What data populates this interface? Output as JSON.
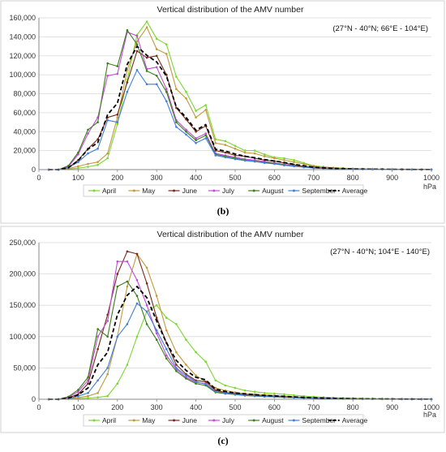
{
  "chart_data": [
    {
      "type": "line",
      "panel_label": "(b)",
      "title": "Vertical distribution of the AMV number",
      "region_label": "(27°N - 40°N; 66°E - 104°E)",
      "x_unit": "hPa",
      "xlim": [
        0,
        1000
      ],
      "ylim": [
        0,
        160000
      ],
      "x_ticks": [
        0,
        100,
        200,
        300,
        400,
        500,
        600,
        700,
        800,
        900,
        1000
      ],
      "y_ticks": [
        0,
        20000,
        40000,
        60000,
        80000,
        100000,
        120000,
        140000,
        160000
      ],
      "y_tick_labels": [
        "0",
        "20,000",
        "40,000",
        "60,000",
        "80,000",
        "100,000",
        "120,000",
        "140,000",
        "160,000"
      ],
      "x": [
        25,
        50,
        75,
        100,
        125,
        150,
        175,
        200,
        225,
        250,
        275,
        300,
        325,
        350,
        375,
        400,
        425,
        450,
        475,
        500,
        525,
        550,
        575,
        600,
        625,
        650,
        675,
        700,
        725,
        750,
        775,
        800,
        825,
        850,
        875,
        900,
        925,
        950,
        975,
        1000
      ],
      "legend_placement": "bottom",
      "series": [
        {
          "name": "April",
          "color": "#7dd634",
          "dash": false,
          "values": [
            0,
            0,
            500,
            1500,
            3000,
            5000,
            12000,
            48000,
            95000,
            142000,
            156000,
            138000,
            132000,
            98000,
            82000,
            62000,
            68000,
            32000,
            30000,
            25000,
            20000,
            20000,
            16000,
            13000,
            12000,
            10000,
            7000,
            4000,
            3000,
            2000,
            1500,
            1000,
            800,
            600,
            500,
            400,
            300,
            200,
            150,
            100
          ]
        },
        {
          "name": "May",
          "color": "#c09a3c",
          "dash": false,
          "values": [
            0,
            0,
            1000,
            3500,
            6000,
            8000,
            17000,
            55000,
            105000,
            135000,
            150000,
            127000,
            122000,
            85000,
            75000,
            55000,
            63000,
            28000,
            26000,
            22000,
            18000,
            17000,
            14000,
            12000,
            10000,
            8000,
            6000,
            3500,
            2500,
            1800,
            1300,
            900,
            700,
            500,
            400,
            300,
            250,
            150,
            100,
            80
          ]
        },
        {
          "name": "June",
          "color": "#7a2a1a",
          "dash": false,
          "values": [
            0,
            0,
            2000,
            10000,
            22000,
            32000,
            55000,
            58000,
            92000,
            125000,
            118000,
            120000,
            100000,
            65000,
            53000,
            40000,
            46000,
            20000,
            18000,
            15000,
            14000,
            12000,
            10000,
            9000,
            7000,
            5000,
            3500,
            2500,
            1800,
            1300,
            900,
            700,
            500,
            400,
            300,
            250,
            200,
            150,
            100,
            80
          ]
        },
        {
          "name": "July",
          "color": "#c24bd6",
          "dash": false,
          "values": [
            0,
            0,
            3000,
            16000,
            38000,
            55000,
            99000,
            101000,
            145000,
            141000,
            106000,
            108000,
            85000,
            52000,
            42000,
            33000,
            38000,
            17000,
            15000,
            13000,
            11000,
            10000,
            8500,
            7000,
            5500,
            4000,
            3000,
            2000,
            1500,
            1100,
            800,
            600,
            400,
            300,
            250,
            200,
            150,
            100,
            80,
            60
          ]
        },
        {
          "name": "August",
          "color": "#3d7e1d",
          "dash": false,
          "values": [
            0,
            0,
            4000,
            18000,
            42000,
            50000,
            112000,
            109000,
            147000,
            132000,
            104000,
            99000,
            82000,
            50000,
            40000,
            31000,
            36000,
            16000,
            14000,
            12000,
            10000,
            9000,
            7500,
            6500,
            5000,
            3800,
            2800,
            1800,
            1300,
            1000,
            700,
            500,
            400,
            300,
            250,
            200,
            150,
            100,
            80,
            60
          ]
        },
        {
          "name": "September",
          "color": "#3f7fd8",
          "dash": false,
          "values": [
            0,
            0,
            2000,
            8000,
            17000,
            22000,
            52000,
            50000,
            82000,
            105000,
            90000,
            90000,
            72000,
            45000,
            37000,
            28000,
            33000,
            15000,
            13000,
            11000,
            9500,
            8500,
            7000,
            6000,
            4500,
            3500,
            2500,
            1600,
            1200,
            900,
            700,
            500,
            400,
            300,
            200,
            150,
            120,
            100,
            70,
            50
          ]
        },
        {
          "name": "Average",
          "color": "#000000",
          "dash": true,
          "values": [
            0,
            0,
            2000,
            9500,
            21500,
            28500,
            58000,
            70000,
            111000,
            130000,
            120500,
            113500,
            98500,
            66000,
            55000,
            41500,
            47500,
            21500,
            19500,
            16500,
            14000,
            12500,
            10500,
            9000,
            7500,
            5500,
            4000,
            2500,
            1800,
            1300,
            1000,
            700,
            500,
            400,
            300,
            250,
            200,
            150,
            100,
            70
          ]
        }
      ]
    },
    {
      "type": "line",
      "panel_label": "(c)",
      "title": "Vertical distribution of the AMV number",
      "region_label": "(27°N - 40°N; 104°E - 140°E)",
      "x_unit": "hPa",
      "xlim": [
        0,
        1000
      ],
      "ylim": [
        0,
        250000
      ],
      "x_ticks": [
        0,
        100,
        200,
        300,
        400,
        500,
        600,
        700,
        800,
        900,
        1000
      ],
      "y_ticks": [
        0,
        50000,
        100000,
        150000,
        200000,
        250000
      ],
      "y_tick_labels": [
        "0",
        "50,000",
        "100,000",
        "150,000",
        "200,000",
        "250,000"
      ],
      "x": [
        25,
        50,
        75,
        100,
        125,
        150,
        175,
        200,
        225,
        250,
        275,
        300,
        325,
        350,
        375,
        400,
        425,
        450,
        475,
        500,
        525,
        550,
        575,
        600,
        625,
        650,
        675,
        700,
        725,
        750,
        775,
        800,
        825,
        850,
        875,
        900,
        925,
        950,
        975,
        1000
      ],
      "legend_placement": "bottom",
      "series": [
        {
          "name": "April",
          "color": "#7dd634",
          "dash": false,
          "values": [
            0,
            0,
            500,
            1000,
            2000,
            3000,
            5000,
            25000,
            55000,
            100000,
            140000,
            150000,
            130000,
            120000,
            95000,
            75000,
            60000,
            30000,
            22000,
            18000,
            14000,
            12000,
            10000,
            9000,
            8000,
            6500,
            5000,
            4000,
            3200,
            2500,
            2000,
            1600,
            1300,
            1000,
            800,
            600,
            500,
            400,
            300,
            200
          ]
        },
        {
          "name": "May",
          "color": "#c09a3c",
          "dash": false,
          "values": [
            0,
            0,
            1000,
            2500,
            5000,
            10000,
            40000,
            100000,
            180000,
            232000,
            210000,
            165000,
            110000,
            75000,
            55000,
            38000,
            28000,
            18000,
            14000,
            11000,
            9000,
            8000,
            7000,
            6000,
            5000,
            4000,
            3200,
            2500,
            2000,
            1600,
            1300,
            1000,
            800,
            600,
            500,
            400,
            300,
            250,
            200,
            150
          ]
        },
        {
          "name": "June",
          "color": "#7a2a1a",
          "dash": false,
          "values": [
            0,
            0,
            2000,
            8000,
            25000,
            80000,
            135000,
            200000,
            236000,
            232000,
            185000,
            130000,
            90000,
            55000,
            40000,
            30000,
            28000,
            14000,
            11000,
            9000,
            7500,
            6500,
            5500,
            4800,
            4000,
            3200,
            2500,
            2000,
            1600,
            1300,
            1000,
            800,
            600,
            500,
            400,
            300,
            250,
            200,
            150,
            100
          ]
        },
        {
          "name": "July",
          "color": "#c24bd6",
          "dash": false,
          "values": [
            0,
            0,
            3000,
            12000,
            30000,
            100000,
            125000,
            220000,
            220000,
            190000,
            150000,
            105000,
            70000,
            48000,
            35000,
            27000,
            25000,
            12000,
            9500,
            8000,
            6500,
            5500,
            4700,
            4000,
            3400,
            2800,
            2200,
            1800,
            1400,
            1100,
            900,
            700,
            500,
            400,
            300,
            250,
            200,
            150,
            120,
            100
          ]
        },
        {
          "name": "August",
          "color": "#3d7e1d",
          "dash": false,
          "values": [
            0,
            0,
            4000,
            15000,
            35000,
            112000,
            100000,
            180000,
            188000,
            165000,
            120000,
            95000,
            65000,
            45000,
            33000,
            25000,
            22000,
            11000,
            9000,
            7500,
            6000,
            5000,
            4300,
            3700,
            3100,
            2600,
            2100,
            1700,
            1300,
            1000,
            800,
            600,
            500,
            400,
            300,
            250,
            200,
            150,
            120,
            100
          ]
        },
        {
          "name": "September",
          "color": "#3f7fd8",
          "dash": false,
          "values": [
            0,
            0,
            1000,
            5000,
            10000,
            30000,
            50000,
            100000,
            120000,
            153000,
            140000,
            110000,
            80000,
            50000,
            38000,
            28000,
            24000,
            12000,
            10000,
            8000,
            6500,
            5500,
            4700,
            4000,
            3400,
            2800,
            2300,
            1800,
            1500,
            1200,
            1000,
            800,
            600,
            500,
            400,
            300,
            250,
            200,
            150,
            100
          ]
        },
        {
          "name": "Average",
          "color": "#000000",
          "dash": true,
          "values": [
            0,
            0,
            2000,
            7000,
            18000,
            55000,
            75000,
            135000,
            166000,
            180000,
            162000,
            125000,
            90000,
            62000,
            46000,
            35000,
            31000,
            16000,
            12500,
            10000,
            8500,
            7200,
            6100,
            5300,
            4500,
            3700,
            2900,
            2300,
            1800,
            1450,
            1150,
            900,
            700,
            550,
            450,
            350,
            280,
            220,
            170,
            120
          ]
        }
      ]
    }
  ]
}
